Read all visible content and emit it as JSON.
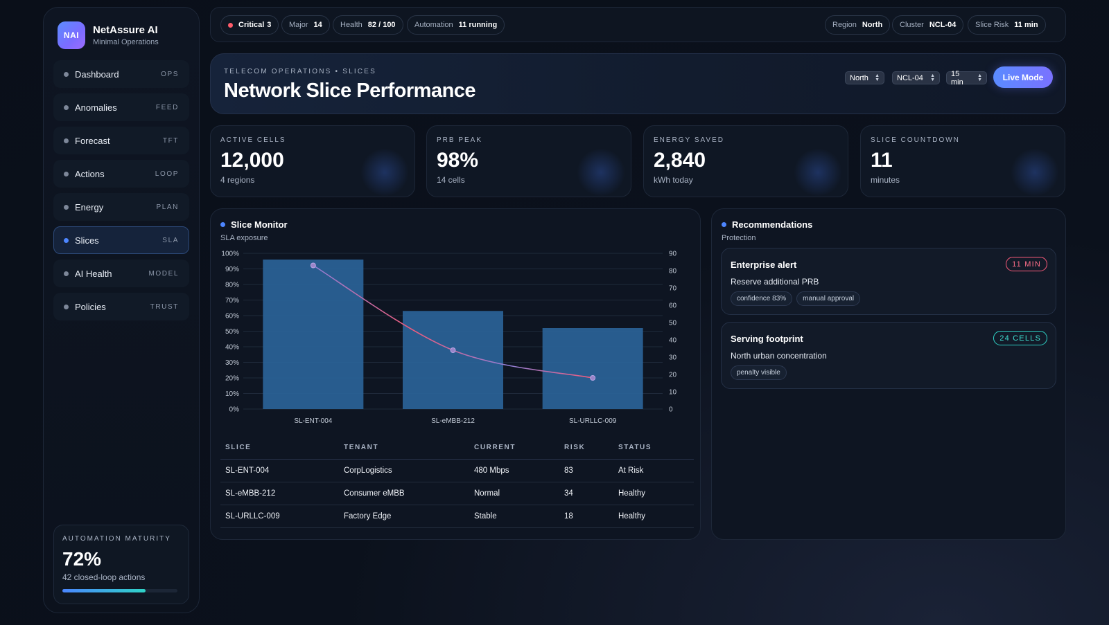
{
  "brand": {
    "logo": "NAI",
    "name": "NetAssure AI",
    "subtitle": "Minimal Operations"
  },
  "nav": [
    {
      "label": "Dashboard",
      "tag": "OPS"
    },
    {
      "label": "Anomalies",
      "tag": "FEED"
    },
    {
      "label": "Forecast",
      "tag": "TFT"
    },
    {
      "label": "Actions",
      "tag": "LOOP"
    },
    {
      "label": "Energy",
      "tag": "PLAN"
    },
    {
      "label": "Slices",
      "tag": "SLA"
    },
    {
      "label": "AI Health",
      "tag": "MODEL"
    },
    {
      "label": "Policies",
      "tag": "TRUST"
    }
  ],
  "maturity": {
    "label": "AUTOMATION MATURITY",
    "value": "72%",
    "sub": "42 closed-loop actions",
    "progress": 72
  },
  "status": {
    "critical": {
      "key": "Critical",
      "value": "3"
    },
    "major": {
      "key": "Major",
      "value": "14"
    },
    "health": {
      "key": "Health",
      "value": "82 / 100"
    },
    "automation": {
      "key": "Automation",
      "value": "11 running"
    },
    "region": {
      "key": "Region",
      "value": "North"
    },
    "cluster": {
      "key": "Cluster",
      "value": "NCL-04"
    },
    "slice_risk": {
      "key": "Slice Risk",
      "value": "11 min"
    }
  },
  "header": {
    "eyebrow": "TELECOM OPERATIONS • SLICES",
    "title": "Network Slice Performance",
    "region_select": "North",
    "cluster_select": "NCL-04",
    "window_select": "15 min",
    "live_button": "Live Mode"
  },
  "kpis": [
    {
      "label": "ACTIVE CELLS",
      "value": "12,000",
      "sub": "4 regions"
    },
    {
      "label": "PRB PEAK",
      "value": "98%",
      "sub": "14 cells"
    },
    {
      "label": "ENERGY SAVED",
      "value": "2,840",
      "sub": "kWh today"
    },
    {
      "label": "SLICE COUNTDOWN",
      "value": "11",
      "sub": "minutes"
    }
  ],
  "monitor": {
    "title": "Slice Monitor",
    "subtitle": "SLA exposure",
    "table": {
      "headers": [
        "SLICE",
        "TENANT",
        "CURRENT",
        "RISK",
        "STATUS"
      ],
      "rows": [
        [
          "SL-ENT-004",
          "CorpLogistics",
          "480 Mbps",
          "83",
          "At Risk"
        ],
        [
          "SL-eMBB-212",
          "Consumer eMBB",
          "Normal",
          "34",
          "Healthy"
        ],
        [
          "SL-URLLC-009",
          "Factory Edge",
          "Stable",
          "18",
          "Healthy"
        ]
      ]
    }
  },
  "chart_data": {
    "type": "bar",
    "categories": [
      "SL-ENT-004",
      "SL-eMBB-212",
      "SL-URLLC-009"
    ],
    "series": [
      {
        "name": "SLA exposure",
        "type": "bar",
        "axis": "left",
        "values": [
          96,
          63,
          52
        ]
      },
      {
        "name": "Risk",
        "type": "line",
        "axis": "right",
        "values": [
          83,
          34,
          18
        ]
      }
    ],
    "y_left": {
      "ticks": [
        "0%",
        "10%",
        "20%",
        "30%",
        "40%",
        "50%",
        "60%",
        "70%",
        "80%",
        "90%",
        "100%"
      ],
      "min": 0,
      "max": 100
    },
    "y_right": {
      "ticks": [
        "0",
        "10",
        "20",
        "30",
        "40",
        "50",
        "60",
        "70",
        "80",
        "90"
      ],
      "min": 0,
      "max": 90
    },
    "colors": {
      "bar": "#2a6398",
      "line_start": "#8f7fd6",
      "line_mid": "#f05b7b",
      "point": "#9a84c8"
    }
  },
  "recommendations": {
    "title": "Recommendations",
    "subtitle": "Protection",
    "cards": [
      {
        "title": "Enterprise alert",
        "badge": "11 MIN",
        "desc": "Reserve additional PRB",
        "pills": [
          "confidence 83%",
          "manual approval"
        ]
      },
      {
        "title": "Serving footprint",
        "badge": "24 CELLS",
        "desc": "North urban concentration",
        "pills": [
          "penalty visible"
        ]
      }
    ]
  }
}
